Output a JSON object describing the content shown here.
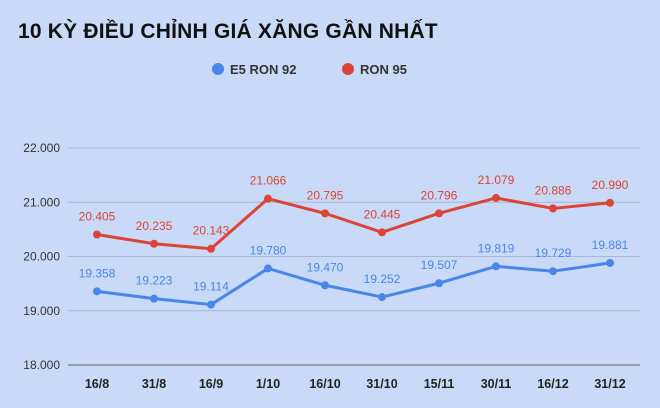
{
  "chart_data": {
    "type": "line",
    "title": "10 KỲ ĐIỀU CHỈNH GIÁ XĂNG GẦN NHẤT",
    "categories": [
      "16/8",
      "31/8",
      "16/9",
      "1/10",
      "16/10",
      "31/10",
      "15/11",
      "30/11",
      "16/12",
      "31/12"
    ],
    "series": [
      {
        "name": "E5 RON 92",
        "color": "#4a86e8",
        "values": [
          19358,
          19223,
          19114,
          19780,
          19470,
          19252,
          19507,
          19819,
          19729,
          19881
        ],
        "labels": [
          "19.358",
          "19.223",
          "19.114",
          "19.780",
          "19.470",
          "19.252",
          "19.507",
          "19.819",
          "19.729",
          "19.881"
        ]
      },
      {
        "name": "RON 95",
        "color": "#db4437",
        "values": [
          20405,
          20235,
          20143,
          21066,
          20795,
          20445,
          20796,
          21079,
          20886,
          20990
        ],
        "labels": [
          "20.405",
          "20.235",
          "20.143",
          "21.066",
          "20.795",
          "20.445",
          "20.796",
          "21.079",
          "20.886",
          "20.990"
        ]
      }
    ],
    "ylim": [
      18000,
      22000
    ],
    "yticks": [
      18000,
      19000,
      20000,
      21000,
      22000
    ],
    "ytick_labels": [
      "18.000",
      "19.000",
      "20.000",
      "21.000",
      "22.000"
    ],
    "grid": true,
    "legend": "top-center"
  }
}
